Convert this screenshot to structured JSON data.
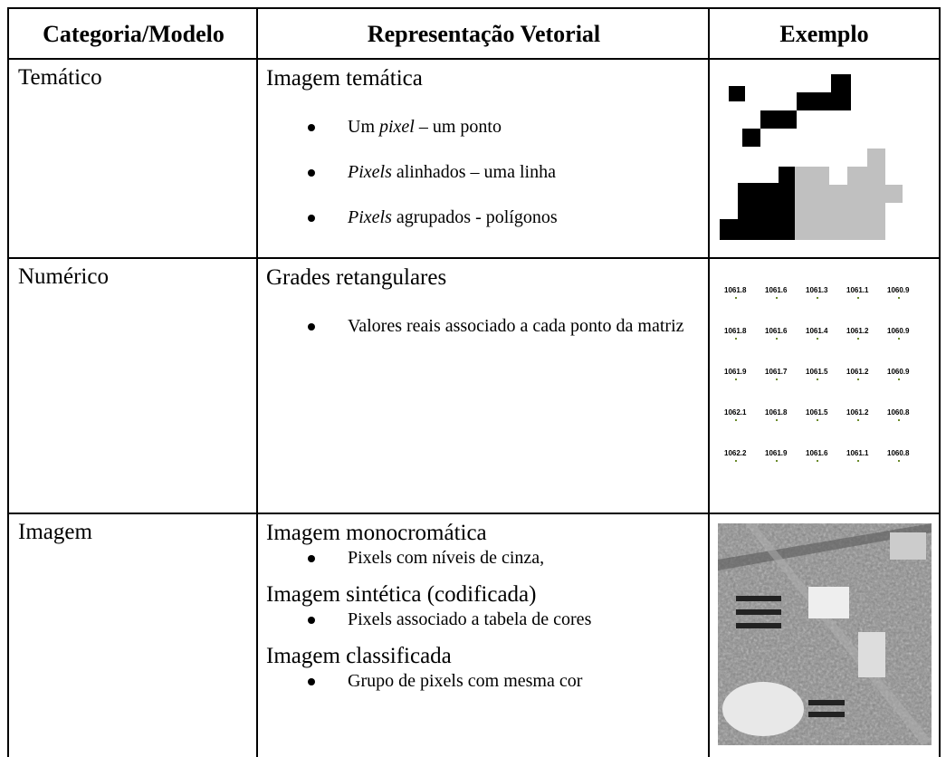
{
  "table": {
    "header": [
      "Categoria/Modelo",
      "Representação Vetorial",
      "Exemplo"
    ],
    "rows": [
      {
        "category": "Temático",
        "representation": [
          {
            "title": "Imagem temática",
            "items": [
              [
                {
                  "text": "Um "
                },
                {
                  "text": "pixel",
                  "italic": true
                },
                {
                  "text": " – um ponto"
                }
              ],
              [
                {
                  "text": "Pixels",
                  "italic": true
                },
                {
                  "text": " alinhados – uma linha"
                }
              ],
              [
                {
                  "text": "Pixels",
                  "italic": true
                },
                {
                  "text": " agrupados - polígonos"
                }
              ]
            ]
          }
        ]
      },
      {
        "category": "Numérico",
        "representation": [
          {
            "title": "Grades retangulares",
            "items": [
              [
                {
                  "text": "Valores reais associado a cada ponto da matriz"
                }
              ]
            ]
          }
        ],
        "example_values": [
          [
            1061.8,
            1061.6,
            1061.3,
            1061.1,
            1060.9
          ],
          [
            1061.8,
            1061.6,
            1061.4,
            1061.2,
            1060.9
          ],
          [
            1061.9,
            1061.7,
            1061.5,
            1061.2,
            1060.9
          ],
          [
            1062.1,
            1061.8,
            1061.5,
            1061.2,
            1060.8
          ],
          [
            1062.2,
            1061.9,
            1061.6,
            1061.1,
            1060.8
          ]
        ]
      },
      {
        "category": "Imagem",
        "representation": [
          {
            "title": "Imagem monocromática",
            "items": [
              [
                {
                  "text": "Pixels com níveis de cinza,"
                }
              ]
            ]
          },
          {
            "title": "Imagem sintética (codificada)",
            "items": [
              [
                {
                  "text": "Pixels associado a tabela de cores"
                }
              ]
            ]
          },
          {
            "title": "Imagem classificada",
            "items": [
              [
                {
                  "text": "Grupo de pixels com mesma cor"
                }
              ]
            ]
          }
        ]
      }
    ]
  }
}
